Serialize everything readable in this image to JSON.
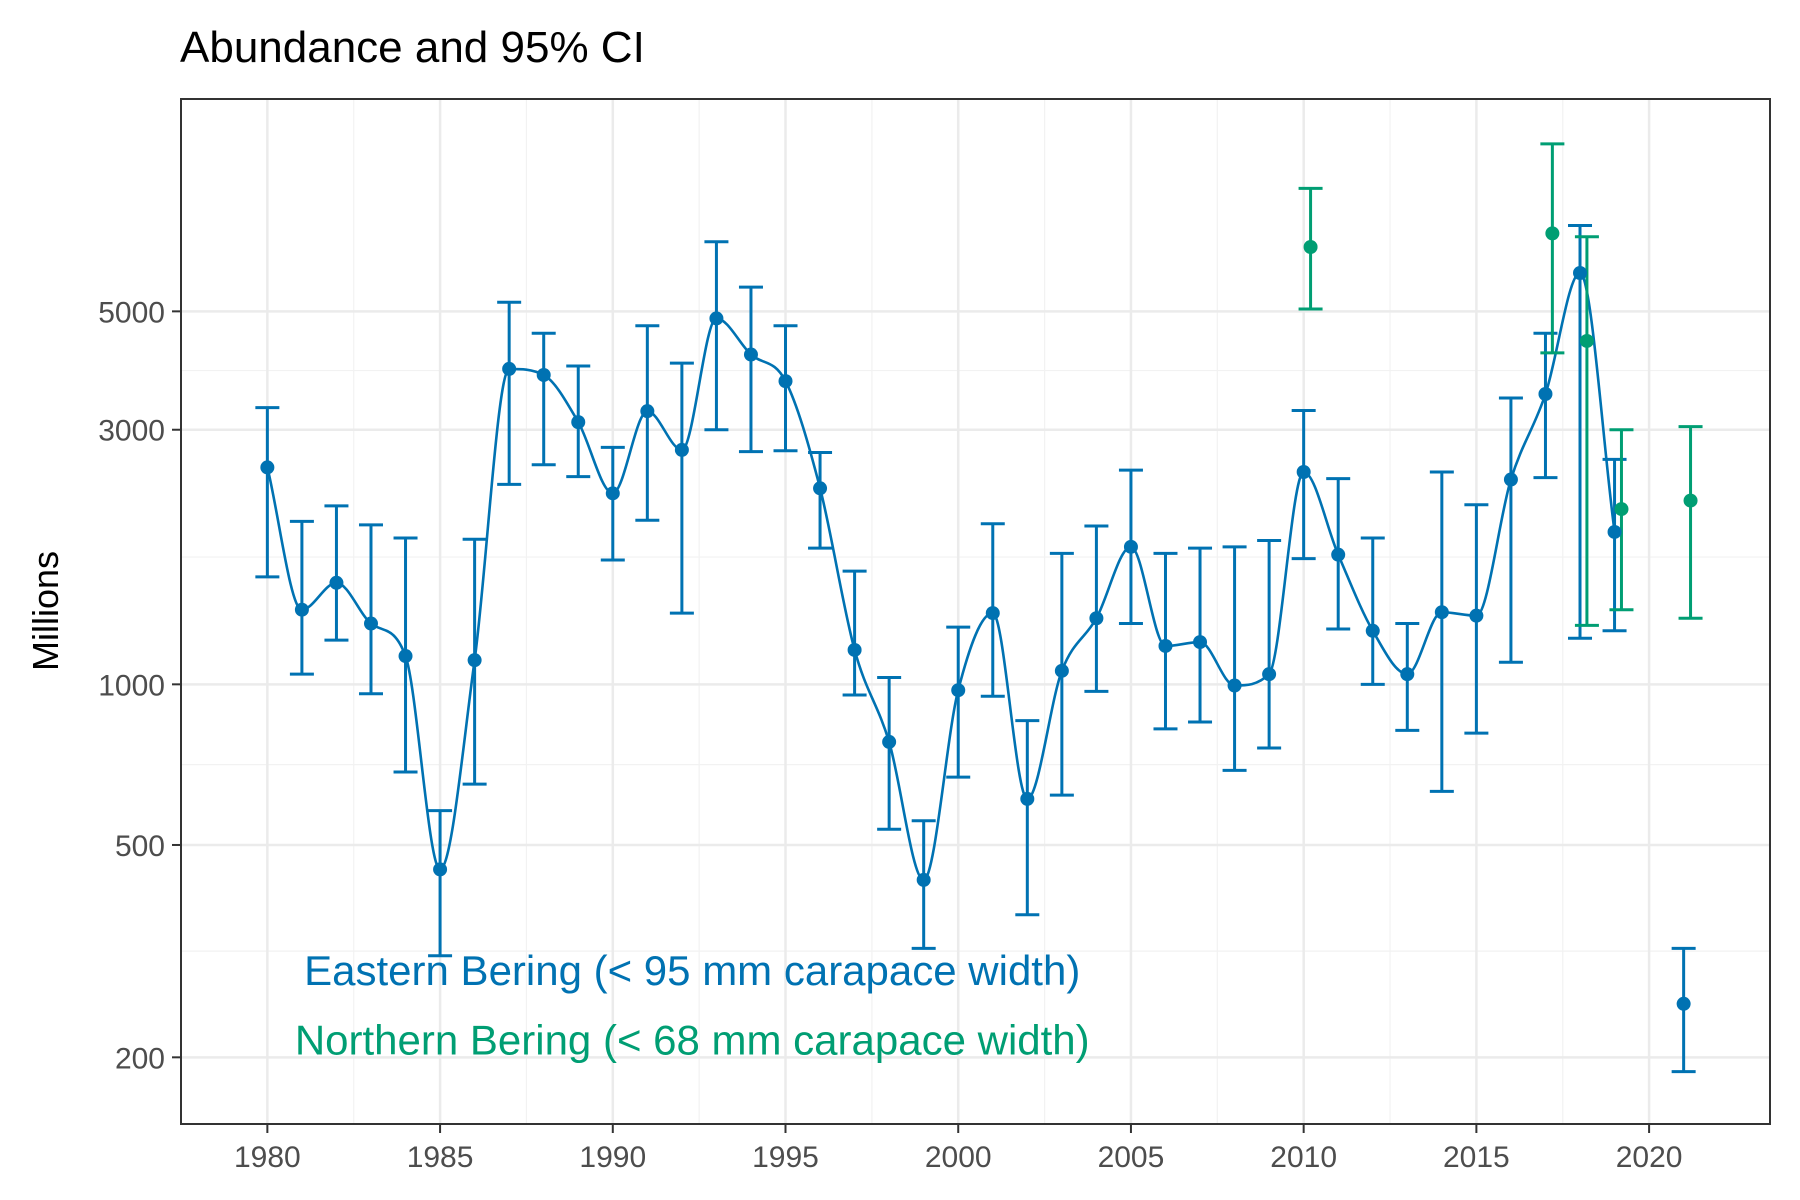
{
  "chart_data": {
    "type": "scatter",
    "title": "Abundance and 95% CI",
    "xlabel": "",
    "ylabel": "Millions",
    "y_scale": "log",
    "xlim": [
      1977.5,
      2023.5
    ],
    "ylim": [
      150,
      12500
    ],
    "x_ticks": [
      1980,
      1985,
      1990,
      1995,
      2000,
      2005,
      2010,
      2015,
      2020
    ],
    "x_tick_labels": [
      "1980",
      "1985",
      "1990",
      "1995",
      "2000",
      "2005",
      "2010",
      "2015",
      "2020"
    ],
    "y_ticks": [
      200,
      500,
      1000,
      3000,
      5000
    ],
    "y_tick_labels": [
      "200",
      "500",
      "1000",
      "3000",
      "5000"
    ],
    "grid": true,
    "colors": {
      "eastern": "#0072B2",
      "northern": "#009E73"
    },
    "series": [
      {
        "name": "Eastern Bering (< 95 mm carapace width)",
        "color": "#0072B2",
        "connected": true,
        "x": [
          1980,
          1981,
          1982,
          1983,
          1984,
          1985,
          1986,
          1987,
          1988,
          1989,
          1990,
          1991,
          1992,
          1993,
          1994,
          1995,
          1996,
          1997,
          1998,
          1999,
          2000,
          2001,
          2002,
          2003,
          2004,
          2005,
          2006,
          2007,
          2008,
          2009,
          2010,
          2011,
          2012,
          2013,
          2014,
          2015,
          2016,
          2017,
          2018,
          2019
        ],
        "y": [
          2550,
          1380,
          1550,
          1300,
          1130,
          450,
          1110,
          3900,
          3800,
          3100,
          2280,
          3250,
          2750,
          4850,
          4150,
          3700,
          2330,
          1160,
          780,
          430,
          975,
          1360,
          610,
          1060,
          1330,
          1810,
          1180,
          1200,
          995,
          1045,
          2500,
          1750,
          1260,
          1045,
          1365,
          1345,
          2420,
          3500,
          5900,
          1930
        ],
        "lower": [
          1590,
          1045,
          1210,
          960,
          685,
          310,
          650,
          2370,
          2580,
          2450,
          1710,
          2030,
          1360,
          3000,
          2730,
          2740,
          1800,
          955,
          535,
          320,
          670,
          950,
          370,
          620,
          970,
          1300,
          825,
          850,
          690,
          760,
          1720,
          1270,
          1000,
          820,
          630,
          810,
          1100,
          2440,
          1220,
          1260
        ],
        "upper": [
          3300,
          2020,
          2160,
          1990,
          1880,
          580,
          1870,
          5200,
          4550,
          3950,
          2780,
          4700,
          4000,
          6750,
          5550,
          4700,
          2720,
          1630,
          1030,
          555,
          1280,
          2000,
          855,
          1760,
          1980,
          2520,
          1760,
          1800,
          1810,
          1860,
          3260,
          2430,
          1880,
          1300,
          2500,
          2170,
          3440,
          4550,
          7240,
          2640
        ]
      },
      {
        "name": "Northern Bering (< 68 mm carapace width)",
        "color": "#009E73",
        "connected": false,
        "x": [
          2010.2,
          2017.2,
          2018.2,
          2019.2,
          2021.2
        ],
        "y": [
          6600,
          7000,
          4400,
          2130,
          2210
        ],
        "lower": [
          5050,
          4180,
          1290,
          1380,
          1330
        ],
        "upper": [
          8500,
          10300,
          6900,
          3000,
          3040
        ]
      },
      {
        "name": "Eastern Bering 2021",
        "color": "#0072B2",
        "connected": false,
        "x": [
          2021
        ],
        "y": [
          252
        ],
        "lower": [
          188
        ],
        "upper": [
          320
        ]
      }
    ],
    "annotations": [
      {
        "text": "Eastern Bering (< 95 mm carapace width)",
        "color": "#0072B2",
        "x": 1992.3,
        "y": 290
      },
      {
        "text": "Northern Bering (< 68 mm carapace width)",
        "color": "#009E73",
        "x": 1992.3,
        "y": 215
      }
    ]
  }
}
